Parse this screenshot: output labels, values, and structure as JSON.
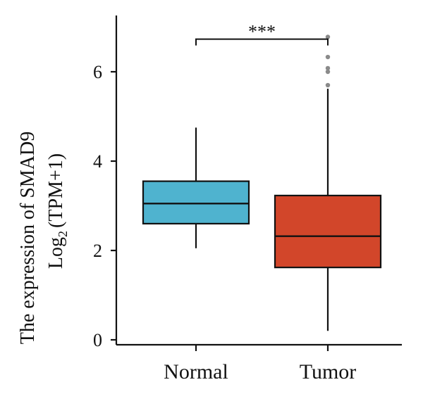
{
  "chart_data": {
    "type": "box",
    "ylabel_line1": "The expression of SMAD9",
    "ylabel_line2_prefix": "Log",
    "ylabel_line2_sub": "2",
    "ylabel_line2_suffix": "(TPM+1)",
    "ylim": [
      0,
      7
    ],
    "yticks": [
      "0",
      "2",
      "4",
      "6"
    ],
    "categories": [
      "Normal",
      "Tumor"
    ],
    "boxes": [
      {
        "name": "Normal",
        "color": "#4fb3cf",
        "whisker_low": 2.05,
        "q1": 2.6,
        "median": 3.05,
        "q3": 3.55,
        "whisker_high": 4.75,
        "outliers": []
      },
      {
        "name": "Tumor",
        "color": "#d2462a",
        "whisker_low": 0.2,
        "q1": 1.62,
        "median": 2.32,
        "q3": 3.23,
        "whisker_high": 5.62,
        "outliers": [
          5.7,
          6.0,
          6.08,
          6.33,
          6.78
        ]
      }
    ],
    "significance": {
      "label": "***",
      "between": [
        "Normal",
        "Tumor"
      ],
      "y": 6.95
    }
  }
}
